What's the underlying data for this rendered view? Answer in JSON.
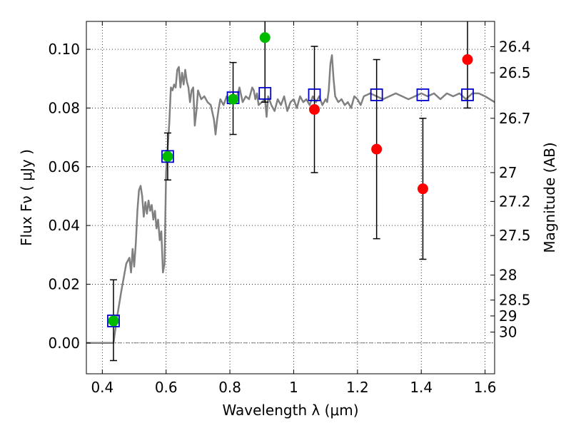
{
  "chart_data": {
    "type": "scatter",
    "xlabel": "Wavelength  λ (μm)",
    "ylabel": "Flux  Fν  ( μJy )",
    "ylabel_right": "Magnitude (AB)",
    "xlim": [
      0.35,
      1.63
    ],
    "ylim": [
      -0.0105,
      0.1095
    ],
    "grid": true,
    "x_ticks": [
      0.4,
      0.6,
      0.8,
      1.0,
      1.2,
      1.4,
      1.6
    ],
    "x_tick_labels": [
      "0.4",
      "0.6",
      "0.8",
      "1",
      "1.2",
      "1.4",
      "1.6"
    ],
    "y_ticks": [
      0.0,
      0.02,
      0.04,
      0.06,
      0.08,
      0.1
    ],
    "y_tick_labels": [
      "0.00",
      "0.02",
      "0.04",
      "0.06",
      "0.08",
      "0.10"
    ],
    "right_ticks": [
      {
        "label": "26.4",
        "flux": 0.1009
      },
      {
        "label": "26.5",
        "flux": 0.092
      },
      {
        "label": "26.7",
        "flux": 0.0765
      },
      {
        "label": "27",
        "flux": 0.058
      },
      {
        "label": "27.2",
        "flux": 0.0482
      },
      {
        "label": "27.5",
        "flux": 0.0366
      },
      {
        "label": "28",
        "flux": 0.0231
      },
      {
        "label": "28.5",
        "flux": 0.0146
      },
      {
        "label": "29",
        "flux": 0.0092
      },
      {
        "label": "30",
        "flux": 0.0037
      }
    ],
    "zero_line": 0.0,
    "series": [
      {
        "kind": "line",
        "color": "#808080",
        "points": [
          [
            0.35,
            0.0
          ],
          [
            0.435,
            0.0
          ],
          [
            0.445,
            0.008
          ],
          [
            0.46,
            0.018
          ],
          [
            0.475,
            0.027
          ],
          [
            0.485,
            0.029
          ],
          [
            0.49,
            0.024
          ],
          [
            0.495,
            0.032
          ],
          [
            0.5,
            0.026
          ],
          [
            0.505,
            0.034
          ],
          [
            0.51,
            0.045
          ],
          [
            0.515,
            0.052
          ],
          [
            0.52,
            0.0535
          ],
          [
            0.525,
            0.05
          ],
          [
            0.53,
            0.043
          ],
          [
            0.535,
            0.048
          ],
          [
            0.54,
            0.044
          ],
          [
            0.545,
            0.0485
          ],
          [
            0.55,
            0.045
          ],
          [
            0.555,
            0.047
          ],
          [
            0.56,
            0.042
          ],
          [
            0.565,
            0.045
          ],
          [
            0.57,
            0.039
          ],
          [
            0.575,
            0.042
          ],
          [
            0.58,
            0.035
          ],
          [
            0.585,
            0.038
          ],
          [
            0.59,
            0.024
          ],
          [
            0.595,
            0.027
          ],
          [
            0.6,
            0.058
          ],
          [
            0.61,
            0.075
          ],
          [
            0.615,
            0.087
          ],
          [
            0.62,
            0.086
          ],
          [
            0.625,
            0.088
          ],
          [
            0.63,
            0.087
          ],
          [
            0.635,
            0.093
          ],
          [
            0.64,
            0.094
          ],
          [
            0.645,
            0.087
          ],
          [
            0.65,
            0.092
          ],
          [
            0.655,
            0.088
          ],
          [
            0.66,
            0.093
          ],
          [
            0.665,
            0.089
          ],
          [
            0.67,
            0.087
          ],
          [
            0.675,
            0.082
          ],
          [
            0.68,
            0.086
          ],
          [
            0.685,
            0.087
          ],
          [
            0.69,
            0.074
          ],
          [
            0.695,
            0.079
          ],
          [
            0.7,
            0.086
          ],
          [
            0.71,
            0.083
          ],
          [
            0.72,
            0.084
          ],
          [
            0.73,
            0.082
          ],
          [
            0.74,
            0.081
          ],
          [
            0.75,
            0.076
          ],
          [
            0.755,
            0.071
          ],
          [
            0.76,
            0.076
          ],
          [
            0.765,
            0.08
          ],
          [
            0.77,
            0.083
          ],
          [
            0.78,
            0.081
          ],
          [
            0.79,
            0.084
          ],
          [
            0.8,
            0.082
          ],
          [
            0.81,
            0.085
          ],
          [
            0.82,
            0.083
          ],
          [
            0.83,
            0.087
          ],
          [
            0.84,
            0.082
          ],
          [
            0.85,
            0.084
          ],
          [
            0.86,
            0.083
          ],
          [
            0.87,
            0.087
          ],
          [
            0.875,
            0.086
          ],
          [
            0.88,
            0.083
          ],
          [
            0.885,
            0.085
          ],
          [
            0.89,
            0.081
          ],
          [
            0.9,
            0.082
          ],
          [
            0.91,
            0.083
          ],
          [
            0.915,
            0.077
          ],
          [
            0.92,
            0.084
          ],
          [
            0.93,
            0.081
          ],
          [
            0.94,
            0.079
          ],
          [
            0.95,
            0.083
          ],
          [
            0.96,
            0.081
          ],
          [
            0.97,
            0.084
          ],
          [
            0.98,
            0.079
          ],
          [
            0.99,
            0.082
          ],
          [
            1.0,
            0.083
          ],
          [
            1.01,
            0.08
          ],
          [
            1.02,
            0.084
          ],
          [
            1.03,
            0.082
          ],
          [
            1.04,
            0.083
          ],
          [
            1.05,
            0.081
          ],
          [
            1.06,
            0.084
          ],
          [
            1.07,
            0.082
          ],
          [
            1.08,
            0.084
          ],
          [
            1.09,
            0.081
          ],
          [
            1.1,
            0.083
          ],
          [
            1.105,
            0.082
          ],
          [
            1.11,
            0.086
          ],
          [
            1.115,
            0.095
          ],
          [
            1.12,
            0.098
          ],
          [
            1.125,
            0.09
          ],
          [
            1.13,
            0.084
          ],
          [
            1.14,
            0.082
          ],
          [
            1.15,
            0.083
          ],
          [
            1.16,
            0.081
          ],
          [
            1.17,
            0.082
          ],
          [
            1.18,
            0.08
          ],
          [
            1.19,
            0.084
          ],
          [
            1.2,
            0.083
          ],
          [
            1.21,
            0.081
          ],
          [
            1.22,
            0.084
          ],
          [
            1.24,
            0.085
          ],
          [
            1.26,
            0.084
          ],
          [
            1.28,
            0.083
          ],
          [
            1.3,
            0.084
          ],
          [
            1.32,
            0.085
          ],
          [
            1.34,
            0.084
          ],
          [
            1.36,
            0.083
          ],
          [
            1.38,
            0.084
          ],
          [
            1.4,
            0.085
          ],
          [
            1.42,
            0.084
          ],
          [
            1.44,
            0.085
          ],
          [
            1.46,
            0.083
          ],
          [
            1.48,
            0.085
          ],
          [
            1.5,
            0.084
          ],
          [
            1.52,
            0.085
          ],
          [
            1.54,
            0.083
          ],
          [
            1.56,
            0.085
          ],
          [
            1.58,
            0.085
          ],
          [
            1.6,
            0.084
          ],
          [
            1.615,
            0.083
          ],
          [
            1.63,
            0.082
          ]
        ]
      },
      {
        "kind": "errorbar",
        "color": "#000000",
        "points": [
          {
            "x": 0.435,
            "lo": -0.006,
            "hi": 0.0215
          },
          {
            "x": 0.605,
            "lo": 0.0555,
            "hi": 0.0715
          },
          {
            "x": 0.81,
            "lo": 0.071,
            "hi": 0.0955
          },
          {
            "x": 0.91,
            "lo": 0.082,
            "hi": 0.1095
          },
          {
            "x": 1.065,
            "lo": 0.058,
            "hi": 0.101
          },
          {
            "x": 1.26,
            "lo": 0.0355,
            "hi": 0.0965
          },
          {
            "x": 1.405,
            "lo": 0.0285,
            "hi": 0.0765
          },
          {
            "x": 1.545,
            "lo": 0.08,
            "hi": 0.1095
          }
        ]
      },
      {
        "kind": "square",
        "color": "#0000cc",
        "points": [
          [
            0.435,
            0.0075
          ],
          [
            0.605,
            0.0635
          ],
          [
            0.81,
            0.0835
          ],
          [
            0.91,
            0.085
          ],
          [
            1.065,
            0.0845
          ],
          [
            1.26,
            0.0845
          ],
          [
            1.405,
            0.0845
          ],
          [
            1.545,
            0.0845
          ]
        ]
      },
      {
        "kind": "circle",
        "color": "#00bb00",
        "points": [
          [
            0.435,
            0.0075
          ],
          [
            0.605,
            0.0635
          ],
          [
            0.81,
            0.083
          ],
          [
            0.91,
            0.104
          ]
        ]
      },
      {
        "kind": "circle",
        "color": "#ff0000",
        "points": [
          [
            1.065,
            0.0795
          ],
          [
            1.26,
            0.066
          ],
          [
            1.405,
            0.0525
          ],
          [
            1.545,
            0.0965
          ]
        ]
      }
    ]
  }
}
